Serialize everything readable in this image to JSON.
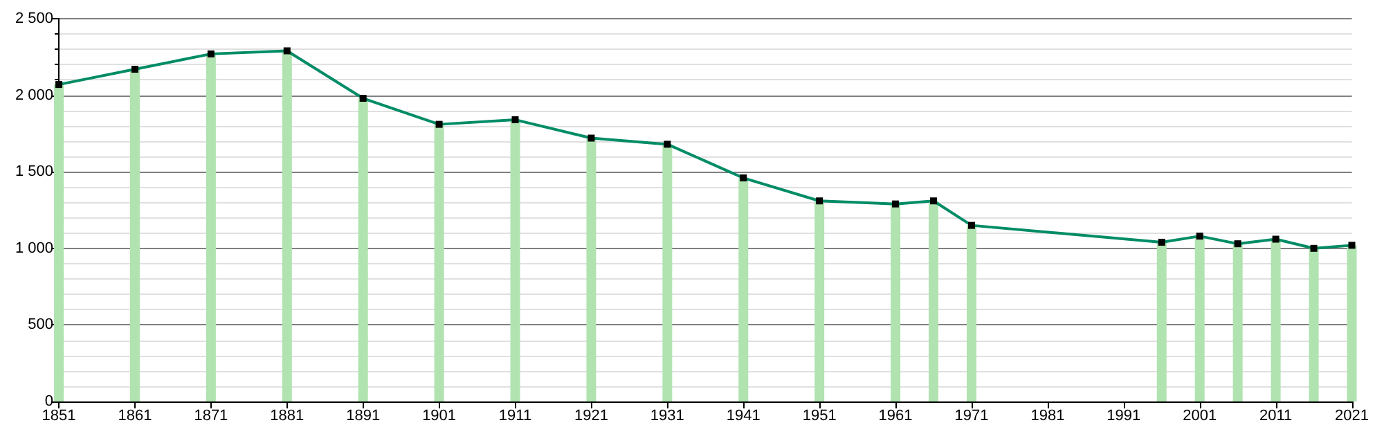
{
  "chart_data": {
    "type": "bar",
    "x": [
      1851,
      1861,
      1871,
      1881,
      1891,
      1901,
      1911,
      1921,
      1931,
      1941,
      1951,
      1961,
      1966,
      1971,
      1996,
      2001,
      2006,
      2011,
      2016,
      2021
    ],
    "series": [
      {
        "color": "#b0e3b0",
        "values": [
          2070,
          2170,
          2270,
          2290,
          1980,
          1810,
          1840,
          1720,
          1680,
          1460,
          1310,
          1290,
          1310,
          1150,
          1040,
          1080,
          1030,
          1060,
          1000,
          1020
        ]
      },
      {
        "type": "line",
        "color": "#008c66",
        "marker": "square",
        "values": [
          2070,
          2170,
          2270,
          2290,
          1980,
          1810,
          1840,
          1720,
          1680,
          1460,
          1310,
          1290,
          1310,
          1150,
          1040,
          1080,
          1030,
          1060,
          1000,
          1020
        ]
      }
    ],
    "xlim": [
      1851,
      2021
    ],
    "xticks": [
      1851,
      1861,
      1871,
      1881,
      1891,
      1901,
      1911,
      1921,
      1931,
      1941,
      1951,
      1961,
      1971,
      1981,
      1991,
      2001,
      2011,
      2021
    ],
    "ylim": [
      0,
      2500
    ],
    "yticks": [
      0,
      {
        "value": 100,
        "label": null
      },
      {
        "value": 200,
        "label": null
      },
      {
        "value": 300,
        "label": null
      },
      {
        "value": 400,
        "label": null
      },
      500,
      {
        "value": 600,
        "label": null
      },
      {
        "value": 700,
        "label": null
      },
      {
        "value": 800,
        "label": null
      },
      {
        "value": 900,
        "label": null
      },
      {
        "value": 1000,
        "label": "1 000"
      },
      {
        "value": 1100,
        "label": null
      },
      {
        "value": 1200,
        "label": null
      },
      {
        "value": 1300,
        "label": null
      },
      {
        "value": 1400,
        "label": null
      },
      {
        "value": 1500,
        "label": "1 500"
      },
      {
        "value": 1600,
        "label": null
      },
      {
        "value": 1700,
        "label": null
      },
      {
        "value": 1800,
        "label": null
      },
      {
        "value": 1900,
        "label": null
      },
      {
        "value": 2000,
        "label": "2 000"
      },
      {
        "value": 2100,
        "label": null
      },
      {
        "value": 2200,
        "label": null
      },
      {
        "value": 2300,
        "label": null
      },
      {
        "value": 2400,
        "label": null
      },
      {
        "value": 2500,
        "label": "2 500"
      }
    ],
    "grid": "y"
  }
}
